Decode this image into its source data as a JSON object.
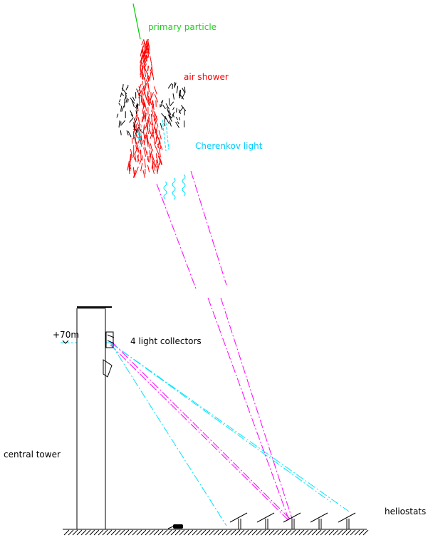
{
  "labels": {
    "primary_particle": "primary particle",
    "air_shower": "air shower",
    "cherenkov_light": "Cherenkov light",
    "light_collectors": "4 light collectors",
    "height": "+70m",
    "central_tower": "central tower",
    "heliostats": "heliostats"
  }
}
